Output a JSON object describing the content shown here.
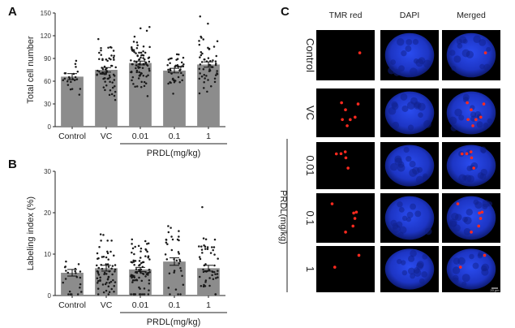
{
  "panels": {
    "a": "A",
    "b": "B",
    "c": "C"
  },
  "colors": {
    "bar": "#8c8c8c",
    "dot": "#1a1a1a",
    "cell": "#1f3ccf",
    "tmr": "#ff2a1f",
    "bg_micro": "#000000"
  },
  "chart_data": [
    {
      "type": "bar",
      "categories": [
        "Control",
        "VC",
        "0.01",
        "0.1",
        "1"
      ],
      "values": [
        66,
        75,
        84,
        74,
        82
      ],
      "errors": [
        4,
        3,
        2.5,
        3,
        3.5
      ],
      "ylabel": "Total cell number",
      "ylim": [
        0,
        150
      ],
      "yticks": [
        0,
        30,
        60,
        90,
        120,
        150
      ],
      "group_label": "PRDL(mg/kg)",
      "grid": false,
      "points_per_bar": [
        22,
        65,
        85,
        45,
        55
      ],
      "point_spread_sd": [
        15,
        20,
        18,
        14,
        18
      ]
    },
    {
      "type": "bar",
      "categories": [
        "Control",
        "VC",
        "0.01",
        "0.1",
        "1"
      ],
      "values": [
        5.5,
        6.6,
        6.3,
        8.2,
        6.6
      ],
      "errors": [
        0.8,
        0.7,
        0.5,
        0.9,
        0.7
      ],
      "ylabel": "Labeling index (%)",
      "ylim": [
        0,
        30
      ],
      "yticks": [
        0,
        10,
        20,
        30
      ],
      "group_label": "PRDL(mg/kg)",
      "grid": false,
      "points_per_bar": [
        22,
        65,
        85,
        35,
        50
      ],
      "point_spread_sd": [
        3.0,
        4.0,
        3.5,
        5.0,
        4.5
      ]
    }
  ],
  "micrographs": {
    "columns": [
      "TMR red",
      "DAPI",
      "Merged"
    ],
    "rows": [
      "Control",
      "VC",
      "0.01",
      "0.1",
      "1"
    ],
    "group_label": "PRDL(mg/kg)",
    "red_spots_per_row": [
      1,
      7,
      5,
      6,
      2
    ],
    "scale_bar": "20 µm"
  }
}
